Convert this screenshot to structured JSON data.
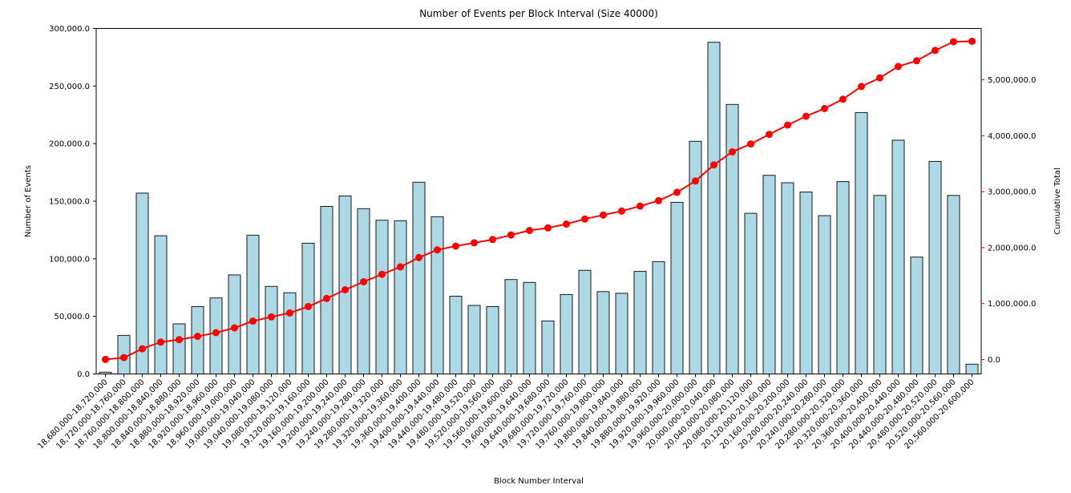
{
  "chart_data": {
    "type": "bar",
    "title": "Number of Events per Block Interval (Size 40000)",
    "xlabel": "Block Number Interval",
    "ylabel_left": "Number of Events",
    "ylabel_right": "Cumulative Total",
    "grid": false,
    "legend": "none",
    "colors": {
      "bar_fill": "#add8e6",
      "bar_edge": "#1a1a1a",
      "line": "#ff0000",
      "right_axis_text": "#ff0000",
      "left_axis_text": "#000000",
      "spine": "#000000",
      "background": "#ffffff"
    },
    "categories": [
      "18,680,000-18,720,000",
      "18,720,000-18,760,000",
      "18,760,000-18,800,000",
      "18,800,000-18,840,000",
      "18,840,000-18,880,000",
      "18,880,000-18,920,000",
      "18,920,000-18,960,000",
      "18,960,000-19,000,000",
      "19,000,000-19,040,000",
      "19,040,000-19,080,000",
      "19,080,000-19,120,000",
      "19,120,000-19,160,000",
      "19,160,000-19,200,000",
      "19,200,000-19,240,000",
      "19,240,000-19,280,000",
      "19,280,000-19,320,000",
      "19,320,000-19,360,000",
      "19,360,000-19,400,000",
      "19,400,000-19,440,000",
      "19,440,000-19,480,000",
      "19,480,000-19,520,000",
      "19,520,000-19,560,000",
      "19,560,000-19,600,000",
      "19,600,000-19,640,000",
      "19,640,000-19,680,000",
      "19,680,000-19,720,000",
      "19,720,000-19,760,000",
      "19,760,000-19,800,000",
      "19,800,000-19,840,000",
      "19,840,000-19,880,000",
      "19,880,000-19,920,000",
      "19,920,000-19,960,000",
      "19,960,000-20,000,000",
      "20,000,000-20,040,000",
      "20,040,000-20,080,000",
      "20,080,000-20,120,000",
      "20,120,000-20,160,000",
      "20,160,000-20,200,000",
      "20,200,000-20,240,000",
      "20,240,000-20,280,000",
      "20,280,000-20,320,000",
      "20,320,000-20,360,000",
      "20,360,000-20,400,000",
      "20,400,000-20,440,000",
      "20,440,000-20,480,000",
      "20,480,000-20,520,000",
      "20,520,000-20,560,000",
      "20,560,000-20,600,000"
    ],
    "series": [
      {
        "name": "Number of Events",
        "type": "bar",
        "axis": "left",
        "values": [
          1500,
          33500,
          157000,
          120000,
          43500,
          58500,
          66000,
          86000,
          120500,
          76000,
          70500,
          113500,
          145500,
          154500,
          143500,
          133500,
          133000,
          166500,
          136500,
          67500,
          59500,
          58500,
          82000,
          79500,
          46000,
          69000,
          90000,
          71500,
          70000,
          89000,
          97500,
          149000,
          202000,
          288000,
          234000,
          139500,
          172500,
          166000,
          158000,
          137500,
          167000,
          227000,
          155000,
          203000,
          101500,
          184500,
          155000,
          8500
        ]
      },
      {
        "name": "Cumulative Total",
        "type": "line",
        "axis": "right",
        "marker": "circle",
        "values": [
          1500,
          35000,
          192000,
          312000,
          355500,
          414000,
          480000,
          566000,
          686500,
          762500,
          833000,
          946500,
          1092000,
          1246500,
          1390000,
          1523500,
          1656500,
          1823000,
          1959500,
          2027000,
          2086500,
          2145000,
          2227000,
          2306500,
          2352500,
          2421500,
          2511500,
          2583000,
          2653000,
          2742000,
          2839500,
          2988500,
          3190500,
          3478500,
          3712500,
          3852000,
          4024500,
          4190500,
          4348500,
          4486000,
          4653000,
          4880000,
          5035000,
          5238000,
          5339500,
          5524000,
          5679000,
          5687500
        ]
      }
    ],
    "axes": {
      "left": {
        "tick_values": [
          0,
          50000,
          100000,
          150000,
          200000,
          250000,
          300000
        ],
        "tick_labels": [
          "0.0",
          "50,000.0",
          "100,000.0",
          "150,000.0",
          "200,000.0",
          "250,000.0",
          "300,000.0"
        ],
        "max": 300000
      },
      "right": {
        "tick_values": [
          0,
          1000000,
          2000000,
          3000000,
          4000000,
          5000000
        ],
        "tick_labels": [
          "0.0",
          "1,000,000.0",
          "2,000,000.0",
          "3,000,000.0",
          "4,000,000.0",
          "5,000,000.0"
        ]
      }
    }
  }
}
